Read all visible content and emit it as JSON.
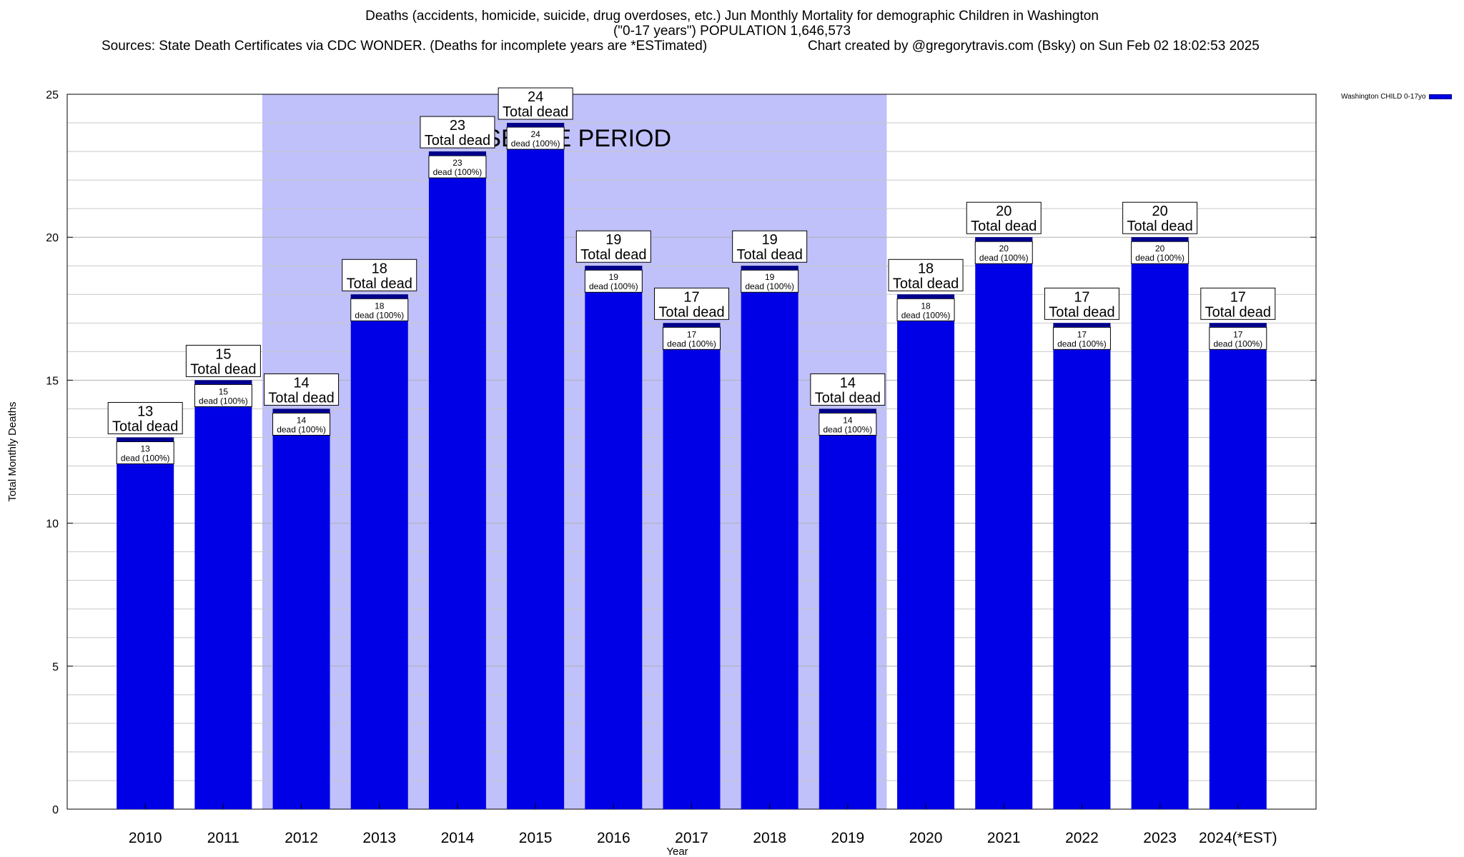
{
  "chart_data": {
    "type": "bar",
    "title_line1": "Deaths (accidents, homicide, suicide, drug overdoses, etc.) Jun Monthly Mortality for demographic Children in Washington",
    "title_line2": "(\"0-17 years\") POPULATION 1,646,573",
    "sources": "Sources: State Death Certificates via CDC WONDER. (Deaths for incomplete years are *ESTimated)",
    "credit": "Chart created by @gregorytravis.com (Bsky) on Sun Feb 02 18:02:53 2025",
    "xlabel": "Year",
    "ylabel": "Total Monthly Deaths",
    "ylim": [
      0,
      25
    ],
    "yticks": [
      0,
      5,
      10,
      15,
      20,
      25
    ],
    "grid": true,
    "categories": [
      "2010",
      "2011",
      "2012",
      "2013",
      "2014",
      "2015",
      "2016",
      "2017",
      "2018",
      "2019",
      "2020",
      "2021",
      "2022",
      "2023",
      "2024(*EST)"
    ],
    "series": [
      {
        "name": "Washington CHILD 0-17yo",
        "color": "#0000e6",
        "values": [
          13,
          15,
          14,
          18,
          23,
          24,
          19,
          17,
          19,
          14,
          18,
          20,
          17,
          20,
          17
        ]
      }
    ],
    "bar_label_suffix": "Total dead",
    "inner_label_suffix": "dead (100%)",
    "baseline_period": {
      "label": "BASELINE PERIOD",
      "start": "2012",
      "end": "2019",
      "color": "#c0c0fa"
    },
    "legend_position": "top-right"
  }
}
